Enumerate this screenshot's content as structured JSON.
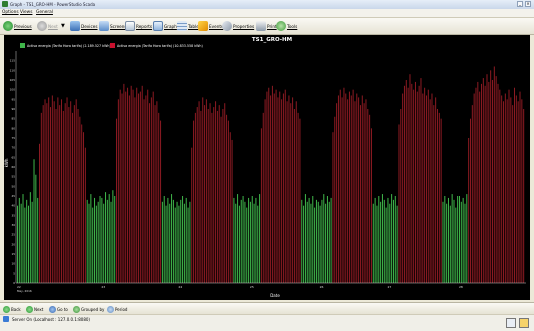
{
  "window": {
    "title": "Graph - TS1_GRO-HM - PowerStudio Scada"
  },
  "menu": {
    "items": [
      "Options",
      "Views",
      "General"
    ]
  },
  "toolbar": {
    "items": [
      {
        "label": "Previous",
        "icon": "green-circle-icon",
        "enabled": true
      },
      {
        "label": "Next",
        "icon": "gray-circle-icon",
        "enabled": false
      },
      {
        "label": "Devices",
        "icon": "devices-icon",
        "enabled": true
      },
      {
        "label": "Screens",
        "icon": "screens-icon",
        "enabled": true
      },
      {
        "label": "Reports",
        "icon": "reports-icon",
        "enabled": true
      },
      {
        "label": "Graph",
        "icon": "graph-icon",
        "enabled": true
      },
      {
        "label": "Table",
        "icon": "table-icon",
        "enabled": true
      },
      {
        "label": "Events",
        "icon": "events-icon",
        "enabled": true
      },
      {
        "label": "Properties",
        "icon": "properties-icon",
        "enabled": true
      },
      {
        "label": "Print",
        "icon": "print-icon",
        "enabled": true
      },
      {
        "label": "Tools",
        "icon": "tools-icon",
        "enabled": true
      }
    ]
  },
  "colors": {
    "green": "#3fb54a",
    "red": "#8b1a22",
    "background": "#000000"
  },
  "chart_data": {
    "type": "bar",
    "title": "TS1_GRO-HM",
    "ylabel": "kWh",
    "xlabel": "Date",
    "ylim": [
      0,
      120
    ],
    "yticks": [
      0,
      5,
      10,
      15,
      20,
      25,
      30,
      35,
      40,
      45,
      50,
      55,
      60,
      65,
      70,
      75,
      80,
      85,
      90,
      95,
      100,
      105,
      110,
      115
    ],
    "xticks": [
      {
        "label": "22",
        "sub": "May, 2016"
      },
      {
        "label": "23",
        "sub": ""
      },
      {
        "label": "24",
        "sub": ""
      },
      {
        "label": "25",
        "sub": ""
      },
      {
        "label": "26",
        "sub": ""
      },
      {
        "label": "27",
        "sub": ""
      },
      {
        "label": "28",
        "sub": ""
      }
    ],
    "legend": [
      {
        "name": "Activa energia (Tarifa Hora tarifa) (2.189.527 kWh)",
        "color": "#3fb54a"
      },
      {
        "name": "Activa energia (Tarifa Hora tarifa) (10.833.558 kWh)",
        "color": "#c8102e"
      }
    ],
    "days": [
      {
        "green_before": [
          40,
          44,
          41,
          46,
          39,
          43,
          40,
          47,
          42,
          64,
          56,
          44
        ],
        "red": [
          72,
          88,
          92,
          95,
          93,
          96,
          91,
          97,
          94,
          90,
          96,
          92,
          95,
          89,
          93,
          96,
          91,
          94,
          88,
          92,
          95,
          90,
          86,
          82,
          78,
          70
        ],
        "green_after": [
          43,
          41,
          46,
          39,
          44,
          40,
          42,
          45
        ]
      },
      {
        "green_before": [
          44,
          41,
          47,
          43,
          46,
          42,
          48,
          45
        ],
        "red": [
          85,
          95,
          100,
          98,
          103,
          99,
          101,
          97,
          102,
          100,
          96,
          101,
          98,
          99,
          102,
          95,
          97,
          100,
          93,
          96,
          99,
          92,
          94,
          88,
          84
        ],
        "green_after": [
          42,
          45,
          40,
          44,
          41,
          46,
          43,
          39,
          42
        ]
      },
      {
        "green_before": [
          40,
          43,
          45,
          41,
          44,
          39,
          42
        ],
        "red": [
          70,
          84,
          88,
          91,
          94,
          89,
          96,
          92,
          95,
          90,
          93,
          88,
          91,
          94,
          89,
          92,
          86,
          90,
          93,
          87,
          84,
          78,
          74
        ],
        "green_after": [
          44,
          41,
          46,
          40,
          43,
          45,
          42,
          39,
          44
        ]
      },
      {
        "green_before": [
          42,
          45,
          41,
          44,
          40,
          46
        ],
        "red": [
          80,
          88,
          95,
          99,
          101,
          97,
          102,
          98,
          100,
          96,
          99,
          95,
          98,
          100,
          94,
          97,
          93,
          96,
          90,
          94,
          88,
          85
        ],
        "green_after": [
          43,
          40,
          46,
          42,
          44,
          41,
          45,
          39,
          43,
          42
        ]
      },
      {
        "green_before": [
          40,
          43,
          46,
          41,
          45,
          42,
          44
        ],
        "red": [
          78,
          86,
          93,
          97,
          100,
          96,
          101,
          98,
          95,
          99,
          97,
          100,
          94,
          98,
          96,
          92,
          97,
          93,
          95,
          90,
          87,
          80
        ],
        "green_after": [
          41,
          44,
          40,
          45,
          42,
          46,
          43,
          39
        ]
      },
      {
        "green_before": [
          44,
          41,
          46,
          43,
          45,
          40
        ],
        "red": [
          82,
          90,
          98,
          102,
          105,
          101,
          108,
          103,
          100,
          104,
          99,
          102,
          106,
          98,
          101,
          97,
          100,
          95,
          98,
          92,
          96,
          90,
          88,
          85
        ],
        "green_after": [
          42,
          45,
          41,
          44,
          40,
          46,
          43,
          39,
          45
        ]
      },
      {
        "green_before": [
          45,
          42,
          44,
          41,
          46
        ],
        "red": [
          75,
          85,
          92,
          98,
          101,
          104,
          99,
          103,
          106,
          102,
          108,
          104,
          110,
          105,
          112,
          107,
          103,
          100,
          97,
          94,
          98,
          95,
          100,
          96,
          92,
          101,
          97,
          94,
          99,
          95,
          90
        ]
      }
    ]
  },
  "bottom": {
    "items": [
      {
        "label": "Back",
        "icon": "back-icon"
      },
      {
        "label": "Next",
        "icon": "next-icon"
      },
      {
        "label": "Go to",
        "icon": "goto-icon"
      },
      {
        "label": "Grouped by",
        "icon": "grouped-icon"
      },
      {
        "label": "Period",
        "icon": "period-icon"
      }
    ]
  },
  "status": {
    "text": "Server On (Localhost : 127.0.0.1:8080)"
  }
}
